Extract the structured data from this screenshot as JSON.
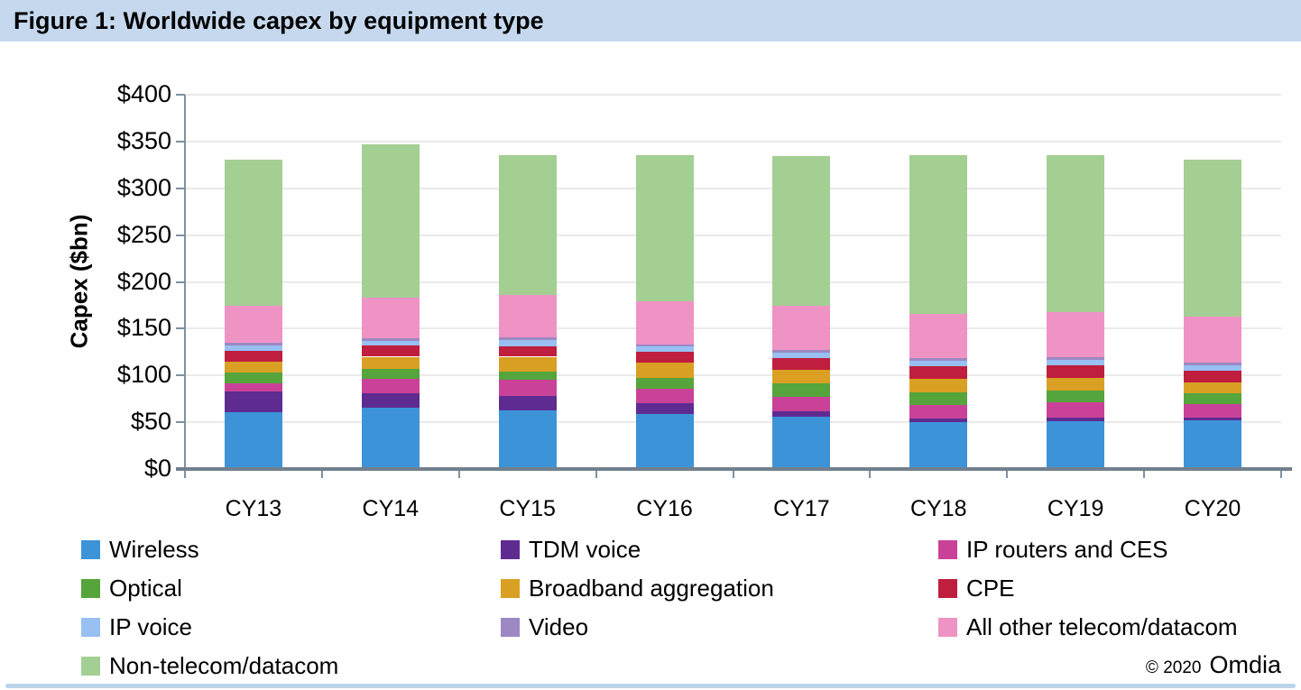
{
  "header": {
    "title": "Figure 1: Worldwide capex by equipment type",
    "bg_color": "#c5d8ee"
  },
  "footer": {
    "copyright": "© 2020",
    "brand": "Omdia",
    "bottom_strip_color": "#bdd4ea"
  },
  "colors": {
    "gridline": "#eaeaea",
    "axis": "#8090a0",
    "bottom_axis": "#72808e",
    "text": "#000000"
  },
  "chart_data": {
    "type": "bar",
    "stacked": true,
    "title": "Figure 1: Worldwide capex by equipment type",
    "xlabel": "",
    "ylabel": "Capex ($bn)",
    "ylim": [
      0,
      400
    ],
    "grid": true,
    "legend_position": "bottom",
    "yticks": [
      {
        "value": 0,
        "label": "$0"
      },
      {
        "value": 50,
        "label": "$50"
      },
      {
        "value": 100,
        "label": "$100"
      },
      {
        "value": 150,
        "label": "$150"
      },
      {
        "value": 200,
        "label": "$200"
      },
      {
        "value": 250,
        "label": "$250"
      },
      {
        "value": 300,
        "label": "$300"
      },
      {
        "value": 350,
        "label": "$350"
      },
      {
        "value": 400,
        "label": "$400"
      }
    ],
    "categories": [
      "CY13",
      "CY14",
      "CY15",
      "CY16",
      "CY17",
      "CY18",
      "CY19",
      "CY20"
    ],
    "series": [
      {
        "name": "Wireless",
        "color": "#3d93d8",
        "values": [
          61,
          66,
          63,
          59,
          55.5,
          50.5,
          51.5,
          52
        ]
      },
      {
        "name": "TDM voice",
        "color": "#5e2b91",
        "values": [
          21.5,
          14.5,
          15,
          11,
          6,
          3.5,
          3.5,
          3
        ]
      },
      {
        "name": "IP routers and CES",
        "color": "#ca4298",
        "values": [
          9,
          15.5,
          17.5,
          16,
          16,
          14.5,
          16.5,
          14
        ]
      },
      {
        "name": "Optical",
        "color": "#55a43c",
        "values": [
          12,
          11,
          9,
          11.5,
          14,
          13,
          12.5,
          12
        ]
      },
      {
        "name": "Broadband aggregation",
        "color": "#d9a023",
        "values": [
          11.5,
          13,
          15.5,
          16,
          14.5,
          15,
          13,
          12
        ]
      },
      {
        "name": "CPE",
        "color": "#bf1e3e",
        "values": [
          11,
          12,
          11.5,
          11.5,
          12.5,
          13.5,
          13.5,
          12
        ]
      },
      {
        "name": "IP voice",
        "color": "#98c0f2",
        "values": [
          6,
          5,
          6.5,
          6,
          6,
          5.5,
          6,
          6
        ]
      },
      {
        "name": "Video",
        "color": "#9c88c2",
        "values": [
          2.5,
          2.5,
          3,
          2,
          3,
          3,
          3,
          3
        ]
      },
      {
        "name": "All other telecom/datacom",
        "color": "#ef93c5",
        "values": [
          40,
          44,
          45,
          46.5,
          46.5,
          47,
          48,
          48.5
        ]
      },
      {
        "name": "Non-telecom/datacom",
        "color": "#a3cf93",
        "values": [
          156,
          163.5,
          149.5,
          156,
          160,
          170,
          168,
          168
        ]
      }
    ],
    "totals": [
      330.5,
      347,
      335.5,
      335.5,
      334,
      335.5,
      335.5,
      330.5
    ],
    "legend_rows": [
      [
        "Wireless",
        "TDM voice",
        "IP routers and CES"
      ],
      [
        "Optical",
        "Broadband aggregation",
        "CPE"
      ],
      [
        "IP voice",
        "Video",
        "All other telecom/datacom"
      ],
      [
        "Non-telecom/datacom"
      ]
    ]
  }
}
